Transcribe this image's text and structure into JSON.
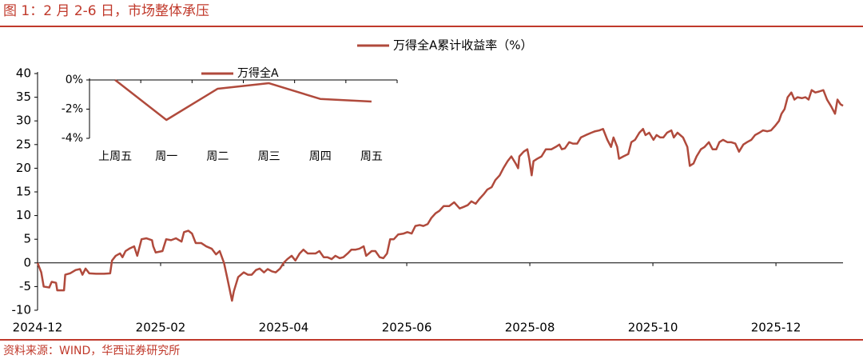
{
  "title": "图 1：2 月 2-6 日，市场整体承压",
  "source": "资料来源：WIND，华西证券研究所",
  "chart_data": [
    {
      "type": "line",
      "xlim": [
        0,
        13.09
      ],
      "xticks": [
        {
          "value": 0,
          "label": "2024-12"
        },
        {
          "value": 2,
          "label": "2025-02"
        },
        {
          "value": 4,
          "label": "2025-04"
        },
        {
          "value": 6,
          "label": "2025-06"
        },
        {
          "value": 8,
          "label": "2025-08"
        },
        {
          "value": 10,
          "label": "2025-10"
        },
        {
          "value": 12,
          "label": "2025-12"
        }
      ],
      "ylim": [
        -10,
        40
      ],
      "yticks": [
        -10,
        -5,
        0,
        5,
        10,
        15,
        20,
        25,
        30,
        35,
        40
      ],
      "x": [
        0,
        0.06,
        0.1,
        0.19,
        0.23,
        0.3,
        0.32,
        0.43,
        0.45,
        0.53,
        0.62,
        0.69,
        0.73,
        0.78,
        0.84,
        0.95,
        1.08,
        1.18,
        1.21,
        1.27,
        1.34,
        1.38,
        1.43,
        1.49,
        1.57,
        1.62,
        1.69,
        1.77,
        1.86,
        1.88,
        1.92,
        2.03,
        2.09,
        2.17,
        2.25,
        2.34,
        2.38,
        2.45,
        2.51,
        2.57,
        2.66,
        2.74,
        2.83,
        2.9,
        2.96,
        3.03,
        3.08,
        3.16,
        3.19,
        3.26,
        3.35,
        3.42,
        3.48,
        3.55,
        3.61,
        3.68,
        3.74,
        3.81,
        3.87,
        3.94,
        4.0,
        4.06,
        4.13,
        4.19,
        4.26,
        4.32,
        4.39,
        4.45,
        4.52,
        4.58,
        4.65,
        4.71,
        4.78,
        4.84,
        4.91,
        4.97,
        5.04,
        5.1,
        5.17,
        5.23,
        5.3,
        5.34,
        5.43,
        5.49,
        5.56,
        5.62,
        5.68,
        5.73,
        5.79,
        5.86,
        5.95,
        6.01,
        6.08,
        6.14,
        6.21,
        6.27,
        6.34,
        6.4,
        6.47,
        6.53,
        6.6,
        6.69,
        6.77,
        6.86,
        6.92,
        6.99,
        7.05,
        7.12,
        7.18,
        7.25,
        7.31,
        7.38,
        7.44,
        7.51,
        7.57,
        7.64,
        7.7,
        7.77,
        7.81,
        7.83,
        7.9,
        7.96,
        7.99,
        8.03,
        8.06,
        8.12,
        8.19,
        8.26,
        8.35,
        8.42,
        8.48,
        8.52,
        8.57,
        8.64,
        8.7,
        8.77,
        8.83,
        8.91,
        9.0,
        9.06,
        9.13,
        9.19,
        9.26,
        9.32,
        9.36,
        9.42,
        9.45,
        9.52,
        9.6,
        9.65,
        9.71,
        9.78,
        9.84,
        9.88,
        9.94,
        10.01,
        10.06,
        10.12,
        10.17,
        10.23,
        10.3,
        10.34,
        10.4,
        10.49,
        10.56,
        10.6,
        10.66,
        10.71,
        10.78,
        10.84,
        10.91,
        10.97,
        11.03,
        11.08,
        11.14,
        11.21,
        11.27,
        11.34,
        11.4,
        11.47,
        11.53,
        11.6,
        11.66,
        11.73,
        11.79,
        11.86,
        11.92,
        11.99,
        12.05,
        12.09,
        12.14,
        12.19,
        12.25,
        12.3,
        12.35,
        12.42,
        12.48,
        12.53,
        12.58,
        12.64,
        12.7,
        12.77,
        12.83,
        12.9,
        12.96,
        13.0,
        13.05,
        13.09
      ],
      "series": [
        {
          "name": "万得全A累计收益率（%）",
          "color": "#b04a3c",
          "values": [
            0,
            -2,
            -5,
            -5.2,
            -4,
            -4.2,
            -5.8,
            -5.8,
            -2.5,
            -2.2,
            -1.5,
            -1.3,
            -2.5,
            -1.2,
            -2.2,
            -2.3,
            -2.3,
            -2.2,
            0.5,
            1.5,
            2,
            1.2,
            2.5,
            3,
            3.5,
            1.5,
            5,
            5.2,
            4.8,
            3.5,
            2.2,
            2.5,
            5,
            4.8,
            5.2,
            4.5,
            6.5,
            6.8,
            6.2,
            4.2,
            4.2,
            3.5,
            3,
            1.8,
            2.5,
            0,
            -3,
            -8,
            -6,
            -3,
            -2,
            -2.5,
            -2.5,
            -1.5,
            -1.2,
            -2,
            -1.3,
            -1.8,
            -2,
            -1.2,
            0,
            0.8,
            1.5,
            0.5,
            2,
            2.8,
            2,
            2,
            2,
            2.5,
            1.2,
            1.2,
            0.8,
            1.5,
            1,
            1.2,
            2,
            2.8,
            2.8,
            3,
            3.5,
            1.5,
            2.5,
            2.5,
            1.2,
            1,
            2,
            5,
            5,
            6,
            6.2,
            6.5,
            6.2,
            7.8,
            8,
            7.8,
            8.2,
            9.5,
            10.5,
            11,
            12,
            12,
            12.8,
            11.5,
            11.8,
            12.2,
            13,
            12.5,
            13.5,
            14.5,
            15.5,
            16,
            17.5,
            18.5,
            20,
            21.5,
            22.5,
            21,
            20,
            22.5,
            23.5,
            24,
            22,
            18.5,
            21.5,
            22,
            22.5,
            24,
            24,
            24.5,
            25,
            24,
            24.2,
            25.5,
            25.2,
            25.2,
            26.5,
            27,
            27.5,
            27.8,
            28,
            28.3,
            26,
            24.5,
            26.5,
            24.5,
            22,
            22.5,
            23,
            25.5,
            26,
            27.5,
            28.3,
            27,
            27.5,
            26,
            27,
            26.5,
            26.5,
            27.5,
            28,
            26.5,
            27.5,
            26.5,
            24.5,
            20.5,
            21,
            22.5,
            24,
            24.5,
            25.5,
            24,
            24,
            25.5,
            26,
            25.5,
            25.5,
            25.2,
            23.5,
            25,
            25.5,
            26,
            27,
            27.5,
            28,
            27.8,
            28,
            29,
            30,
            31.5,
            32.5,
            35,
            36,
            34.5,
            35,
            34.8,
            35,
            34.5,
            36.5,
            36,
            36.2,
            36.5,
            34.5,
            33,
            31.5,
            34.5,
            33.5,
            33.2
          ]
        }
      ]
    },
    {
      "type": "line",
      "categories": [
        "上周五",
        "周一",
        "周二",
        "周三",
        "周四",
        "周五"
      ],
      "ylim": [
        -4,
        0
      ],
      "yticks": [
        {
          "value": 0,
          "label": "0%"
        },
        {
          "value": -2,
          "label": "-2%"
        },
        {
          "value": -4,
          "label": "-4%"
        }
      ],
      "series": [
        {
          "name": "万得全A",
          "color": "#b04a3c",
          "values": [
            0,
            -2.74,
            -0.6,
            -0.22,
            -1.3,
            -1.48
          ]
        }
      ]
    }
  ]
}
